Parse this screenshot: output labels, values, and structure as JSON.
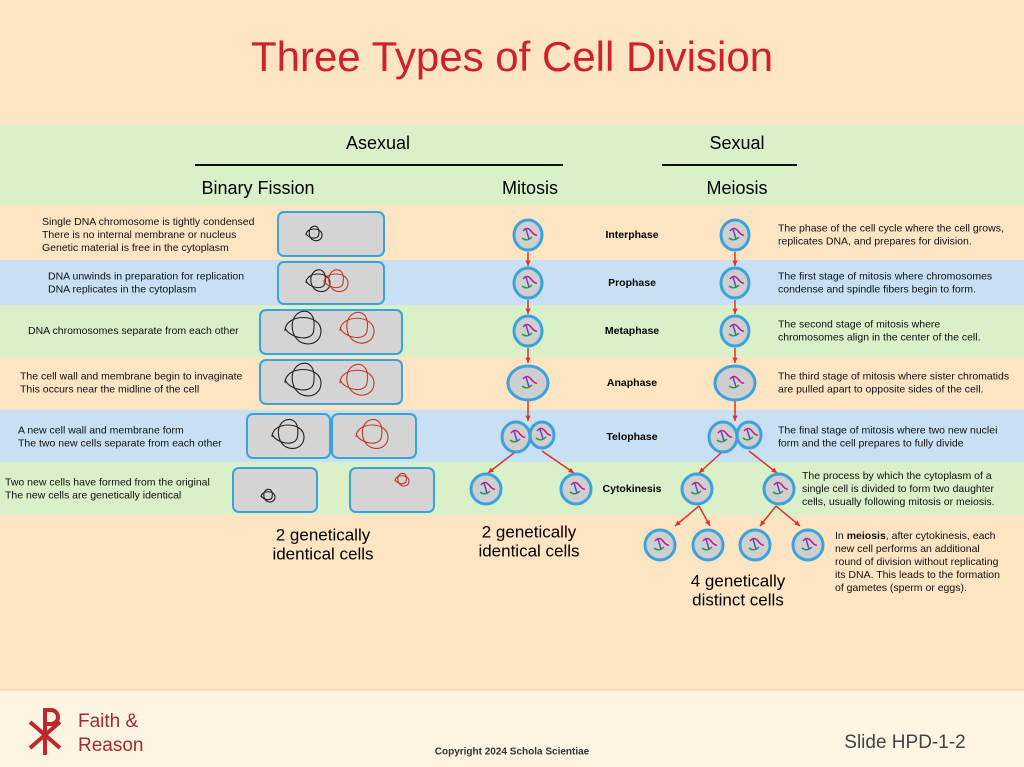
{
  "title": "Three Types of Cell Division",
  "header": {
    "asexual": "Asexual",
    "sexual": "Sexual",
    "binary_fission": "Binary Fission",
    "mitosis": "Mitosis",
    "meiosis": "Meiosis"
  },
  "phases": [
    {
      "name": "Interphase",
      "binary_fission": [
        "Single DNA chromosome is tightly condensed",
        "There is no internal membrane or nucleus",
        "Genetic material is free in the cytoplasm"
      ],
      "description": [
        "The phase of the cell cycle where the cell grows,",
        "replicates DNA, and prepares for division."
      ]
    },
    {
      "name": "Prophase",
      "binary_fission": [
        "DNA unwinds in preparation for replication",
        "DNA replicates in the cytoplasm"
      ],
      "description": [
        "The first stage of mitosis where chromosomes",
        "condense and spindle fibers begin to form."
      ]
    },
    {
      "name": "Metaphase",
      "binary_fission": [
        "DNA chromosomes separate from each other"
      ],
      "description": [
        "The second stage of mitosis where",
        "chromosomes align in the center of the cell."
      ]
    },
    {
      "name": "Anaphase",
      "binary_fission": [
        "The cell wall and membrane begin to invaginate",
        "This occurs near the midline of the cell"
      ],
      "description": [
        "The third stage of mitosis where sister chromatids",
        "are pulled apart to opposite sides of the cell."
      ]
    },
    {
      "name": "Telophase",
      "binary_fission": [
        "A new cell wall and membrane form",
        "The two new cells separate from each other"
      ],
      "description": [
        "The final stage of mitosis where two new nuclei",
        "form and the cell prepares to fully divide"
      ]
    },
    {
      "name": "Cytokinesis",
      "binary_fission": [
        "Two new cells have formed from the original",
        "The new cells are genetically identical"
      ],
      "description": [
        "The process by which the cytoplasm of a",
        "single cell is divided to form two daughter",
        "cells, usually following mitosis or meiosis."
      ]
    }
  ],
  "results": {
    "binary_fission": [
      "2 genetically",
      "identical cells"
    ],
    "mitosis": [
      "2 genetically",
      "identical cells"
    ],
    "meiosis": [
      "4 genetically",
      "distinct cells"
    ]
  },
  "meiosis_note": {
    "start": "In ",
    "bold": "meiosis",
    "lines": [
      ", after cytokinesis, each",
      "new cell performs an additional",
      "round of division without replicating",
      "its DNA. This leads to the formation",
      "of gametes (sperm or eggs)."
    ]
  },
  "footer": {
    "logo": [
      "Faith &",
      "Reason"
    ],
    "copyright": "Copyright 2024 Schola Scientiae",
    "slide": "Slide HPD-1-2"
  }
}
